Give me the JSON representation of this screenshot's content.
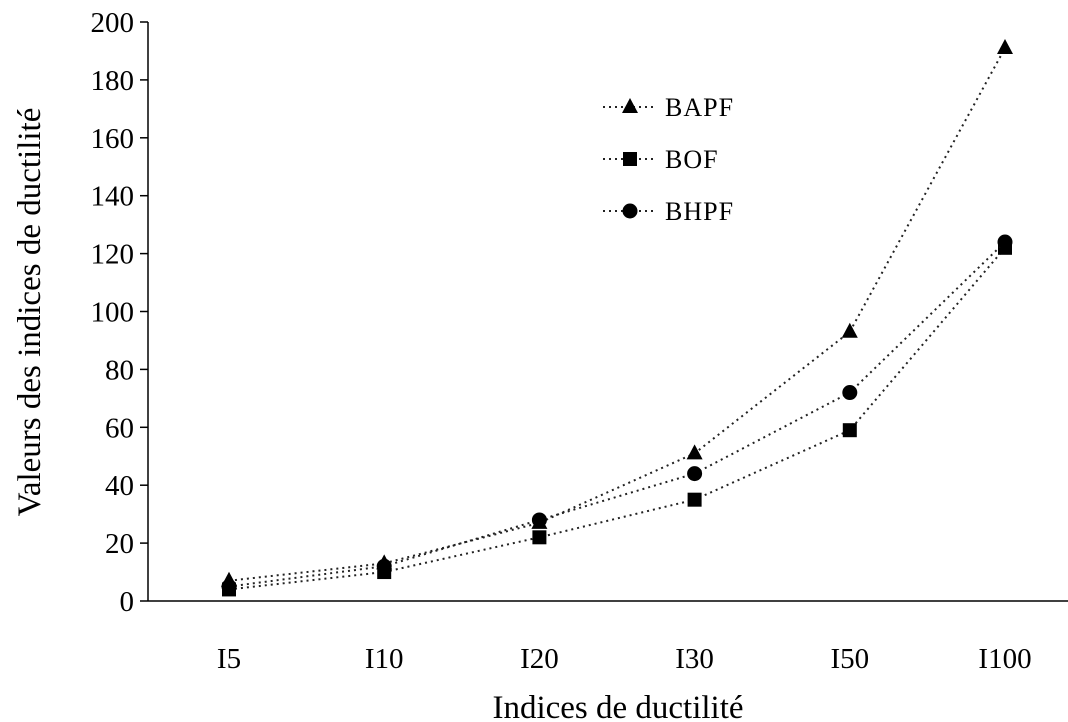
{
  "chart_data": {
    "type": "line",
    "title": "",
    "xlabel": "Indices de ductilité",
    "ylabel": "Valeurs des indices de ductilité",
    "categories": [
      "I5",
      "I10",
      "I20",
      "I30",
      "I50",
      "I100"
    ],
    "ylim": [
      0,
      200
    ],
    "yticks": [
      0,
      20,
      40,
      60,
      80,
      100,
      120,
      140,
      160,
      180,
      200
    ],
    "grid": false,
    "legend_position": "top-center",
    "series": [
      {
        "name": "BAPF",
        "marker": "triangle",
        "values": [
          7,
          13,
          27,
          51,
          93,
          191
        ]
      },
      {
        "name": "BOF",
        "marker": "square",
        "values": [
          4,
          10,
          22,
          35,
          59,
          122
        ]
      },
      {
        "name": "BHPF",
        "marker": "circle",
        "values": [
          5,
          12,
          28,
          44,
          72,
          124
        ]
      }
    ]
  }
}
